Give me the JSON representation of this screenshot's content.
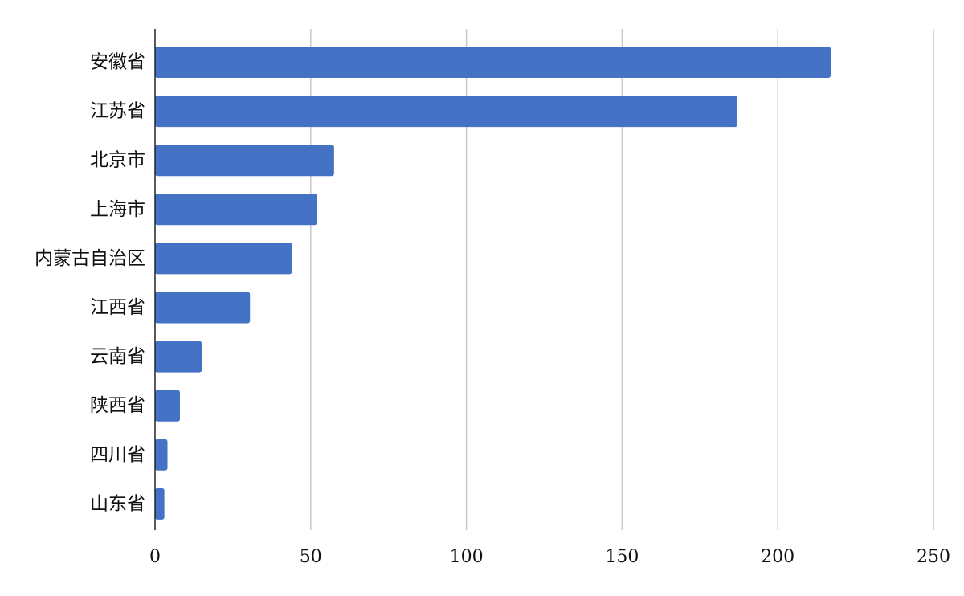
{
  "chart_data": {
    "type": "bar",
    "orientation": "horizontal",
    "categories": [
      "安徽省",
      "江苏省",
      "北京市",
      "上海市",
      "内蒙古自治区",
      "江西省",
      "云南省",
      "陕西省",
      "四川省",
      "山东省"
    ],
    "values": [
      217,
      187,
      57.5,
      52,
      44,
      30.5,
      15,
      8,
      4,
      3
    ],
    "x_ticks": [
      0,
      50,
      100,
      150,
      200,
      250
    ],
    "xlim": [
      0,
      250
    ],
    "title": "",
    "xlabel": "",
    "ylabel": "",
    "grid": "vertical",
    "legend": "none",
    "bar_color": "#4472c4"
  }
}
